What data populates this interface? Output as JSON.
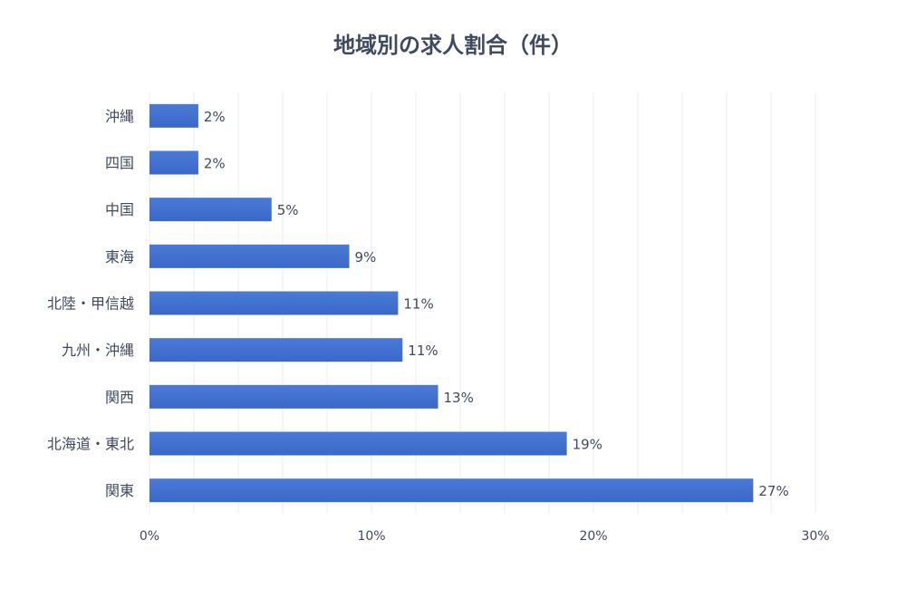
{
  "chart_data": {
    "type": "bar",
    "orientation": "horizontal",
    "title": "地域別の求人割合（件）",
    "categories": [
      "沖縄",
      "四国",
      "中国",
      "東海",
      "北陸・甲信越",
      "九州・沖縄",
      "関西",
      "北海道・東北",
      "関東"
    ],
    "values": [
      2.2,
      2.2,
      5.5,
      9.0,
      11.2,
      11.4,
      13.0,
      18.8,
      27.2
    ],
    "value_labels": [
      "2%",
      "2%",
      "5%",
      "9%",
      "11%",
      "11%",
      "13%",
      "19%",
      "27%"
    ],
    "xlim": [
      0,
      30
    ],
    "x_ticks": [
      "0%",
      "10%",
      "20%",
      "30%"
    ],
    "x_tick_values": [
      0,
      10,
      20,
      30
    ],
    "grid": "vertical",
    "bar_color": "#3a68c8",
    "bar_color_light": "#4a7ad8"
  }
}
